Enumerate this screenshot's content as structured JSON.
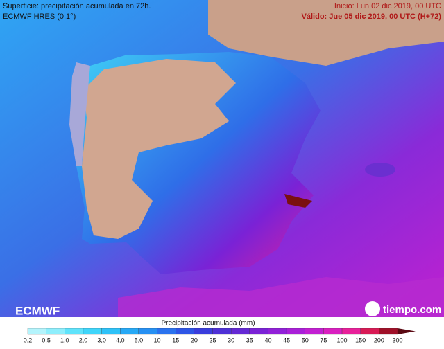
{
  "header": {
    "title": "Superficie: precipitación acumulada en 72h.",
    "model": "ECMWF HRES (0.1°)",
    "init": "Inicio: Lun 02 dic 2019, 00 UTC",
    "valid": "Válido: Jue 05 dic 2019, 00 UTC (H+72)"
  },
  "logos": {
    "left": "ECMWF",
    "right": "tiempo.com"
  },
  "legend": {
    "title": "Precipitación acumulada (mm)",
    "labels": [
      "0,2",
      "0,5",
      "1,0",
      "2,0",
      "3,0",
      "4,0",
      "5,0",
      "10",
      "15",
      "20",
      "25",
      "30",
      "35",
      "40",
      "45",
      "50",
      "75",
      "100",
      "150",
      "200",
      "300"
    ],
    "colors": [
      "#b4f4fc",
      "#8eeefc",
      "#5fe3fb",
      "#3fd5fa",
      "#2ec2f8",
      "#27a9f6",
      "#2690f3",
      "#2a72ee",
      "#2e55e6",
      "#3a3ddc",
      "#4e30d6",
      "#6428d4",
      "#7a22d6",
      "#9120d8",
      "#a91fd8",
      "#c21fd2",
      "#d91fc0",
      "#e8209a",
      "#d81a55",
      "#a01028",
      "#5a0812"
    ]
  }
}
